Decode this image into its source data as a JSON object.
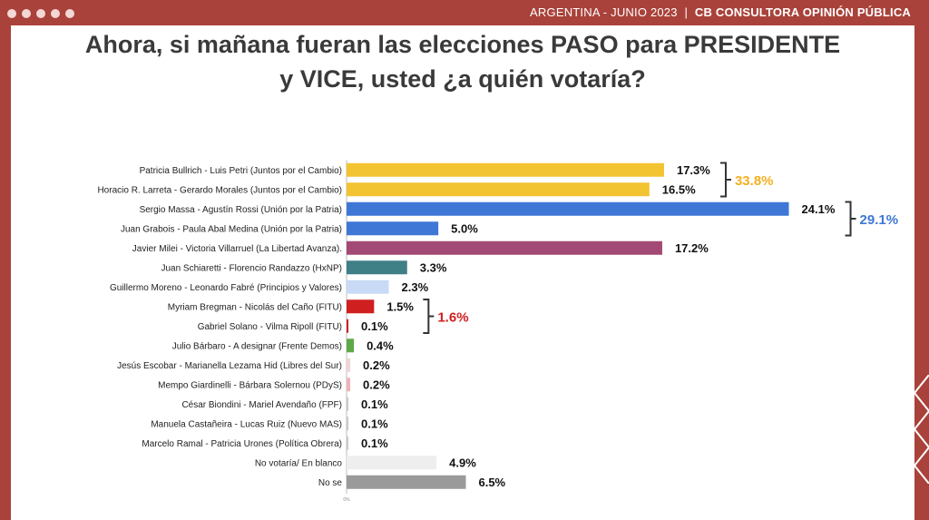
{
  "header": {
    "country": "ARGENTINA",
    "date": "- JUNIO 2023",
    "separator": "|",
    "source": "CB CONSULTORA OPINIÓN PÚBLICA"
  },
  "title_line1": "Ahora, si mañana fueran las elecciones PASO para PRESIDENTE",
  "title_line2": "y VICE, usted ¿a quién votaría?",
  "chart_data": {
    "type": "bar",
    "orientation": "horizontal",
    "unit": "%",
    "x_axis_tick": "0%",
    "categories": [
      "Patricia Bullrich - Luis Petri (Juntos por el Cambio)",
      "Horacio R. Larreta - Gerardo Morales (Juntos por el Cambio)",
      "Sergio Massa - Agustín Rossi (Unión por la Patria)",
      "Juan Grabois - Paula Abal Medina (Unión por la Patria)",
      "Javier Milei - Victoria Villarruel (La Libertad Avanza).",
      "Juan Schiaretti - Florencio Randazzo (HxNP)",
      "Guillermo Moreno - Leonardo Fabré (Principios y Valores)",
      "Myriam Bregman - Nicolás del Caño (FITU)",
      "Gabriel Solano - Vilma Ripoll (FITU)",
      "Julio Bárbaro - A designar (Frente Demos)",
      "Jesús Escobar - Marianella Lezama Hid (Libres del Sur)",
      "Mempo Giardinelli - Bárbara Solernou (PDyS)",
      "César Biondini - Mariel Avendaño (FPF)",
      "Manuela Castañeira - Lucas Ruiz (Nuevo MAS)",
      "Marcelo Ramal - Patricia Urones (Política Obrera)",
      "No votaría/ En blanco",
      "No se"
    ],
    "values": [
      17.3,
      16.5,
      24.1,
      5.0,
      17.2,
      3.3,
      2.3,
      1.5,
      0.1,
      0.4,
      0.2,
      0.2,
      0.1,
      0.1,
      0.1,
      4.9,
      6.5
    ],
    "value_labels": [
      "17.3%",
      "16.5%",
      "24.1%",
      "5.0%",
      "17.2%",
      "3.3%",
      "2.3%",
      "1.5%",
      "0.1%",
      "0.4%",
      "0.2%",
      "0.2%",
      "0.1%",
      "0.1%",
      "0.1%",
      "4.9%",
      "6.5%"
    ],
    "colors": [
      "#f2c431",
      "#f2c431",
      "#3f77d6",
      "#3f77d6",
      "#a24a75",
      "#3f7f86",
      "#c8daf5",
      "#d01f1f",
      "#d01f1f",
      "#5ea84a",
      "#f2d4d6",
      "#f0b3b8",
      "#c9c9c9",
      "#c9c9c9",
      "#c9c9c9",
      "#eeeeee",
      "#9a9a9a"
    ],
    "groups": [
      {
        "rows": [
          0,
          1
        ],
        "total_label": "33.8%",
        "color": "#f2b021"
      },
      {
        "rows": [
          2,
          3
        ],
        "total_label": "29.1%",
        "color": "#3f77d6"
      },
      {
        "rows": [
          7,
          8
        ],
        "total_label": "1.6%",
        "color": "#d01f1f"
      }
    ]
  }
}
